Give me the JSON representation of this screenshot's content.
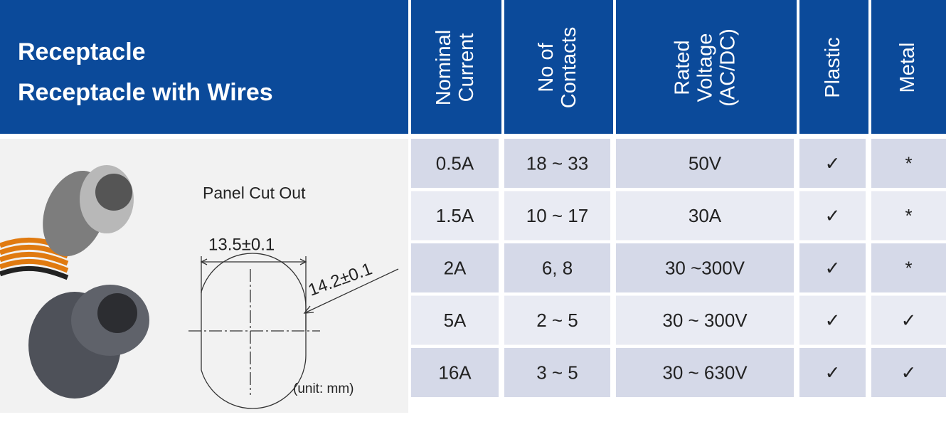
{
  "header": {
    "title": [
      "Receptacle",
      "Receptacle with Wires"
    ],
    "columns": [
      [
        "Nominal",
        "Current"
      ],
      [
        "No of",
        "Contacts"
      ],
      [
        "Rated",
        "Voltage",
        "(AC/DC)"
      ],
      [
        "Plastic"
      ],
      [
        "Metal"
      ]
    ]
  },
  "diagram": {
    "label": "Panel Cut Out",
    "width": "13.5±0.1",
    "diameter": "14.2±0.1",
    "unit": "(unit: mm)"
  },
  "table": {
    "rows": [
      [
        "0.5A",
        "18 ~ 33",
        "50V",
        "✓",
        "*"
      ],
      [
        "1.5A",
        "10 ~ 17",
        "30A",
        "✓",
        "*"
      ],
      [
        "2A",
        "6, 8",
        "30 ~300V",
        "✓",
        "*"
      ],
      [
        "5A",
        "2 ~ 5",
        "30 ~ 300V",
        "✓",
        "✓"
      ],
      [
        "16A",
        "3 ~ 5",
        "30 ~ 630V",
        "✓",
        "✓"
      ]
    ]
  }
}
